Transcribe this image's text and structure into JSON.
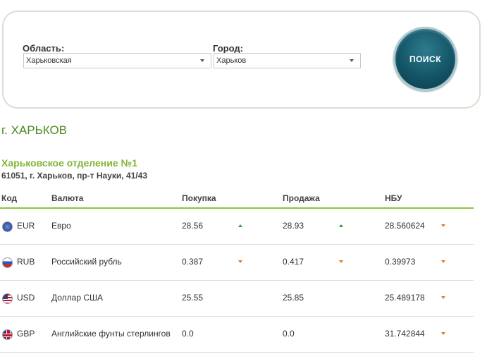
{
  "search": {
    "region_label": "Область:",
    "region_value": "Харьковская",
    "city_label": "Город:",
    "city_value": "Харьков",
    "search_button": "ПОИСК"
  },
  "city_title": "г. ХАРЬКОВ",
  "branch": {
    "name": "Харьковское отделение №1",
    "address": "61051, г. Харьков, пр-т Науки, 41/43"
  },
  "table": {
    "headers": {
      "code": "Код",
      "currency": "Валюта",
      "buy": "Покупка",
      "sell": "Продажа",
      "nbu": "НБУ"
    },
    "rows": [
      {
        "code": "EUR",
        "flag": "eu-flag-icon",
        "name": "Евро",
        "buy": "28.56",
        "buy_trend": "up",
        "sell": "28.93",
        "sell_trend": "up",
        "nbu": "28.560624",
        "nbu_trend": "down"
      },
      {
        "code": "RUB",
        "flag": "ru-flag-icon",
        "name": "Российский рубль",
        "buy": "0.387",
        "buy_trend": "down",
        "sell": "0.417",
        "sell_trend": "down",
        "nbu": "0.39973",
        "nbu_trend": "down"
      },
      {
        "code": "USD",
        "flag": "us-flag-icon",
        "name": "Доллар США",
        "buy": "25.55",
        "buy_trend": "none",
        "sell": "25.85",
        "sell_trend": "none",
        "nbu": "25.489178",
        "nbu_trend": "down"
      },
      {
        "code": "GBP",
        "flag": "gb-flag-icon",
        "name": "Английские фунты стерлингов",
        "buy": "0.0",
        "buy_trend": "none",
        "sell": "0.0",
        "sell_trend": "none",
        "nbu": "31.742844",
        "nbu_trend": "down"
      }
    ]
  },
  "colors": {
    "accent_green": "#8dc43f",
    "title_green": "#4a8a1f",
    "trend_up": "#3a9a3a",
    "trend_down": "#e07b20",
    "button_teal": "#145567"
  }
}
